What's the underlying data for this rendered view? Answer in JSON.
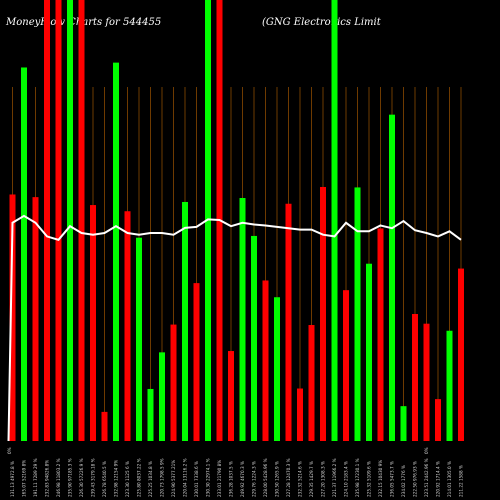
{
  "chart_data": {
    "type": "bar",
    "title_left": "MoneyFlow Charts for 544455",
    "title_right": "(GNG Electronics Limit",
    "colors": {
      "up": "#00ff00",
      "down": "#ff0000",
      "line": "#ffffff",
      "divider": "#8a4a00",
      "background": "#000000"
    },
    "y_markers": [
      "0%",
      "0%"
    ],
    "bars": [
      {
        "label": "131.13 4972.8 %",
        "value": 55.9,
        "color": "down"
      },
      {
        "label": "165.07 52169 8%",
        "value": 84.7,
        "color": "up"
      },
      {
        "label": "191.11 7289 29 %",
        "value": 55.3,
        "color": "down"
      },
      {
        "label": "232.83 94826.8%",
        "value": 100,
        "color": "down"
      },
      {
        "label": "246.98 11803.2 %",
        "value": 100,
        "color": "down"
      },
      {
        "label": "235.90 97185.3 %",
        "value": 100,
        "color": "up"
      },
      {
        "label": "226.30 57226.9 %",
        "value": 100,
        "color": "down"
      },
      {
        "label": "239.43 3179.18 %",
        "value": 53.5,
        "color": "down"
      },
      {
        "label": "226.78 6540.5 %",
        "value": 6.6,
        "color": "down"
      },
      {
        "label": "232.98 12154 9%",
        "value": 85.8,
        "color": "up"
      },
      {
        "label": "223.30 1125 6 %",
        "value": 52.1,
        "color": "down"
      },
      {
        "label": "225.80 8037.22 %",
        "value": 46.1,
        "color": "up"
      },
      {
        "label": "225.25 1034.8 %",
        "value": 11.8,
        "color": "up"
      },
      {
        "label": "220.73 1798.5 9%",
        "value": 20.1,
        "color": "up"
      },
      {
        "label": "224.90 5377.21%",
        "value": 26.4,
        "color": "down"
      },
      {
        "label": "220.04 13116.2 %",
        "value": 54.2,
        "color": "up"
      },
      {
        "label": "230.01 7338.6 %",
        "value": 35.8,
        "color": "down"
      },
      {
        "label": "230.30 22974.1 %",
        "value": 100,
        "color": "up"
      },
      {
        "label": "233.01 21790 8%",
        "value": 100,
        "color": "down"
      },
      {
        "label": "236.28 1037.5 %",
        "value": 20.4,
        "color": "down"
      },
      {
        "label": "249.92 4670.3 %",
        "value": 55.1,
        "color": "up"
      },
      {
        "label": "229.76 1224.3 %",
        "value": 46.5,
        "color": "up"
      },
      {
        "label": "228.00 5428.96 %",
        "value": 36.4,
        "color": "down"
      },
      {
        "label": "230.50 1265.9 %",
        "value": 32.6,
        "color": "up"
      },
      {
        "label": "227.28 12470.3 %",
        "value": 53.8,
        "color": "down"
      },
      {
        "label": "232.32 5214.6 %",
        "value": 11.9,
        "color": "down"
      },
      {
        "label": "229.35 1429.7 %",
        "value": 26.3,
        "color": "down"
      },
      {
        "label": "227.20 1308.3 %",
        "value": 57.6,
        "color": "down"
      },
      {
        "label": "221.37 11966.2 %",
        "value": 100,
        "color": "up"
      },
      {
        "label": "224.10 2183.4 %",
        "value": 34.2,
        "color": "down"
      },
      {
        "label": "235.98 17230.1 %",
        "value": 57.5,
        "color": "up"
      },
      {
        "label": "225.32 5109.6 %",
        "value": 40.2,
        "color": "up"
      },
      {
        "label": "232.15 10430 9%",
        "value": 48.2,
        "color": "down"
      },
      {
        "label": "236.05 5473.7 %",
        "value": 74,
        "color": "up"
      },
      {
        "label": "234.02 1776 %",
        "value": 7.9,
        "color": "up"
      },
      {
        "label": "222.50 976.93 %",
        "value": 28.8,
        "color": "down"
      },
      {
        "label": "223.51 2442.96 %",
        "value": 26.6,
        "color": "down"
      },
      {
        "label": "220.92 1714.4 %",
        "value": 9.5,
        "color": "down"
      },
      {
        "label": "214.01 1305.0 %",
        "value": 25,
        "color": "up"
      },
      {
        "label": "211.22 1588 %",
        "value": 39.1,
        "color": "down"
      }
    ],
    "line": [
      64,
      66,
      64,
      60,
      59,
      63,
      61,
      60.5,
      61,
      63,
      61,
      60.5,
      61,
      61,
      60.5,
      62.5,
      62.8,
      65,
      64.8,
      63,
      64,
      63.5,
      63.2,
      62.8,
      62.4,
      62,
      62,
      60.5,
      60,
      64,
      61.5,
      61.5,
      63.2,
      62.4,
      64.5,
      61.8,
      61,
      60,
      61.5,
      59
    ]
  }
}
